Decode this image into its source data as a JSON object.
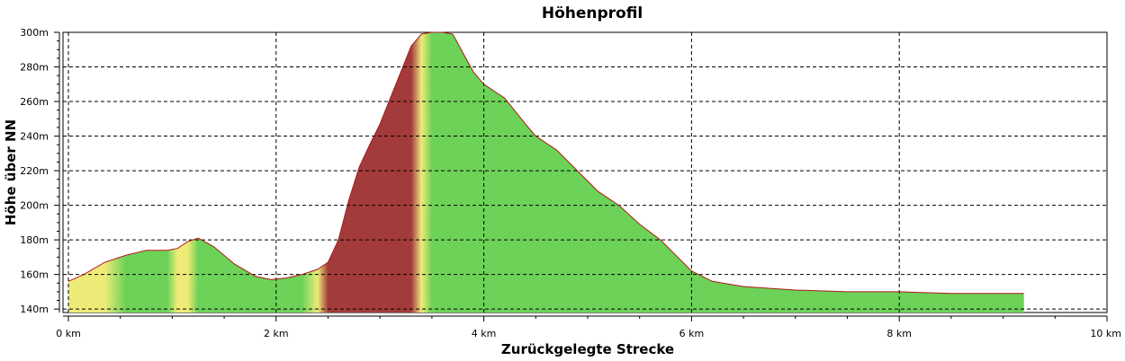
{
  "chart_data": {
    "type": "area",
    "title": "Höhenprofil",
    "xlabel": "Zurückgelegte Strecke",
    "ylabel": "Höhe über NN",
    "xlim": [
      0,
      10
    ],
    "ylim": [
      138,
      300
    ],
    "x_ticks": [
      0,
      2,
      4,
      6,
      8,
      10
    ],
    "x_tick_labels": [
      "0 km",
      "2 km",
      "4 km",
      "6 km",
      "8 km",
      "10 km"
    ],
    "y_ticks": [
      140,
      160,
      180,
      200,
      220,
      240,
      260,
      280,
      300
    ],
    "y_tick_labels": [
      "140m",
      "160m",
      "180m",
      "200m",
      "220m",
      "240m",
      "260m",
      "280m",
      "300m"
    ],
    "grid": true,
    "colors": {
      "flat": "#6fd65a",
      "mild": "#f2f07a",
      "steep": "#a63c3c",
      "outline": "#b01818"
    },
    "series": [
      {
        "x": [
          0,
          0.15,
          0.35,
          0.55,
          0.75,
          0.95,
          1.05,
          1.15,
          1.25,
          1.4,
          1.6,
          1.8,
          1.95,
          2.1,
          2.25,
          2.4,
          2.5,
          2.6,
          2.7,
          2.8,
          2.9,
          3.0,
          3.1,
          3.2,
          3.3,
          3.4,
          3.5,
          3.6,
          3.7,
          3.8,
          3.9,
          4.0,
          4.2,
          4.4,
          4.5,
          4.7,
          4.9,
          5.1,
          5.3,
          5.5,
          5.7,
          5.9,
          6.0,
          6.2,
          6.5,
          7.0,
          7.5,
          8.0,
          8.5,
          9.0,
          9.2
        ],
        "values": [
          156,
          160,
          167,
          171,
          174,
          174,
          175,
          179,
          181,
          176,
          166,
          159,
          157,
          158,
          160,
          163,
          167,
          180,
          203,
          222,
          235,
          247,
          262,
          277,
          292,
          299,
          300,
          300,
          299,
          288,
          277,
          270,
          262,
          247,
          240,
          232,
          220,
          208,
          200,
          189,
          180,
          168,
          162,
          156,
          153,
          151,
          150,
          150,
          149,
          149,
          149
        ]
      }
    ]
  }
}
